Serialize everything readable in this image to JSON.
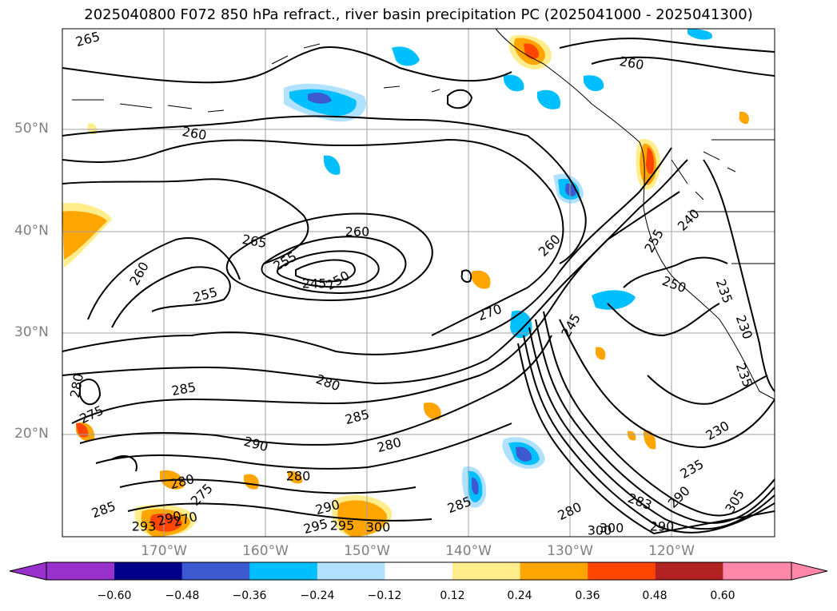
{
  "title": "2025040800 F072 850 hPa refract., river basin precipitation PC (2025041000 - 2025041300)",
  "lat_labels": [
    "50°N",
    "40°N",
    "30°N",
    "20°N"
  ],
  "lon_labels": [
    "170°W",
    "160°W",
    "150°W",
    "140°W",
    "130°W",
    "120°W"
  ],
  "colorbar": {
    "tick_labels": [
      "−0.60",
      "−0.48",
      "−0.36",
      "−0.24",
      "−0.12",
      "0.12",
      "0.24",
      "0.36",
      "0.48",
      "0.60"
    ],
    "colors": [
      "#9932cc",
      "#00008b",
      "#3c59d0",
      "#00bfff",
      "#b0e2ff",
      "#ffffff",
      "#ffec8b",
      "#ffa500",
      "#ff4500",
      "#b22222",
      "#ff88aa"
    ]
  },
  "contour_labels": [
    "265",
    "260",
    "260",
    "265",
    "260",
    "255",
    "255",
    "260",
    "250",
    "245",
    "260",
    "255",
    "240",
    "250",
    "235",
    "230",
    "235",
    "270",
    "245",
    "280",
    "285",
    "285",
    "280",
    "290",
    "280",
    "290",
    "280",
    "285",
    "275",
    "290",
    "270",
    "293",
    "300",
    "295",
    "280",
    "275",
    "285",
    "280",
    "300",
    "300",
    "290",
    "295",
    "230",
    "235",
    "290",
    "283",
    "305"
  ]
}
